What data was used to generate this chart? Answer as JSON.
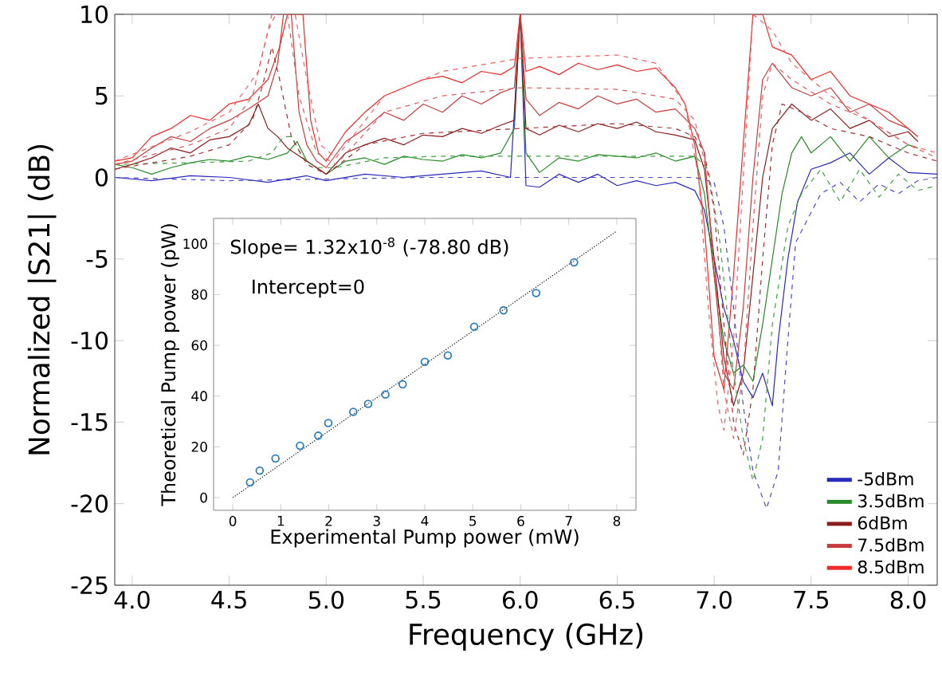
{
  "chart_data": [
    {
      "type": "line",
      "xlabel": "Frequency (GHz)",
      "ylabel": "Normalized |S21| (dB)",
      "xlim": [
        3.91,
        8.15
      ],
      "ylim": [
        -25,
        10
      ],
      "xticks": [
        {
          "value": 4,
          "label": "4.0"
        },
        {
          "value": 4.5,
          "label": "4.5"
        },
        {
          "value": 5,
          "label": "5.0"
        },
        {
          "value": 5.5,
          "label": "5.5"
        },
        {
          "value": 6,
          "label": "6.0"
        },
        {
          "value": 6.5,
          "label": "6.5"
        },
        {
          "value": 7,
          "label": "7.0"
        },
        {
          "value": 7.5,
          "label": "7.5"
        },
        {
          "value": 8,
          "label": "8.0"
        }
      ],
      "yticks": [
        -25,
        -20,
        -15,
        -10,
        -5,
        0,
        5,
        10
      ],
      "legend": "bottom right",
      "series": [
        {
          "name": "-5dBm",
          "color": "#2a2ab8",
          "line_style": "solid",
          "x": [
            3.91,
            4.1,
            4.3,
            4.5,
            4.7,
            4.9,
            5.0,
            5.2,
            5.4,
            5.6,
            5.8,
            5.95,
            6.0,
            6.03,
            6.1,
            6.2,
            6.3,
            6.4,
            6.5,
            6.6,
            6.7,
            6.8,
            6.9,
            6.95,
            7.0,
            7.05,
            7.1,
            7.15,
            7.2,
            7.25,
            7.3,
            7.33,
            7.38,
            7.43,
            7.5,
            7.6,
            7.7,
            7.8,
            7.9,
            8.0,
            8.15
          ],
          "values": [
            0,
            -0.2,
            0.1,
            0,
            -0.3,
            0.1,
            -0.2,
            0.2,
            0,
            0.2,
            0.4,
            0,
            10,
            -0.5,
            -0.6,
            0.2,
            -0.3,
            0.2,
            -0.5,
            -0.2,
            -0.5,
            -0.3,
            -0.8,
            -2,
            -5,
            -8,
            -10,
            -12.5,
            -13.5,
            -12,
            -14,
            -10,
            -5,
            -1.5,
            0.5,
            0.9,
            1.5,
            0.2,
            1.2,
            0.3,
            0.2
          ]
        },
        {
          "name": "3.5dBm",
          "color": "#2a8a2a",
          "line_style": "solid",
          "x": [
            3.91,
            4.0,
            4.1,
            4.2,
            4.3,
            4.4,
            4.5,
            4.6,
            4.7,
            4.8,
            4.85,
            4.9,
            5.0,
            5.1,
            5.2,
            5.3,
            5.4,
            5.5,
            5.6,
            5.7,
            5.8,
            5.9,
            5.97,
            6.0,
            6.03,
            6.1,
            6.2,
            6.3,
            6.4,
            6.5,
            6.6,
            6.7,
            6.8,
            6.9,
            6.95,
            7.0,
            7.05,
            7.1,
            7.15,
            7.2,
            7.25,
            7.3,
            7.35,
            7.4,
            7.45,
            7.5,
            7.6,
            7.7,
            7.8,
            7.9,
            8.0,
            8.05
          ],
          "values": [
            0.8,
            0.6,
            0.2,
            0.6,
            0.9,
            1.1,
            1.0,
            1.3,
            1.1,
            1.5,
            2.2,
            1.0,
            0.2,
            1.0,
            1.2,
            0.8,
            1.3,
            1.1,
            1.0,
            1.4,
            1.2,
            1.5,
            3.0,
            10,
            1.5,
            0.3,
            1.2,
            1.0,
            1.4,
            1.3,
            1.2,
            1.5,
            1.0,
            1.3,
            -1,
            -6,
            -10,
            -12,
            -11.5,
            -12.5,
            -9,
            -5,
            -1,
            1.5,
            2.5,
            1.5,
            2.5,
            1.0,
            2.5,
            1.2,
            2.0,
            1.8
          ]
        },
        {
          "name": "6dBm",
          "color": "#8b1c1c",
          "line_style": "solid",
          "x": [
            3.91,
            4.0,
            4.1,
            4.2,
            4.3,
            4.4,
            4.5,
            4.6,
            4.65,
            4.7,
            4.75,
            4.8,
            4.9,
            5.0,
            5.1,
            5.2,
            5.3,
            5.4,
            5.5,
            5.6,
            5.7,
            5.8,
            5.9,
            5.97,
            6.0,
            6.03,
            6.1,
            6.2,
            6.3,
            6.4,
            6.5,
            6.6,
            6.7,
            6.8,
            6.9,
            6.95,
            7.0,
            7.05,
            7.1,
            7.15,
            7.2,
            7.25,
            7.3,
            7.4,
            7.5,
            7.6,
            7.7,
            7.8,
            7.9,
            8.0,
            8.05
          ],
          "values": [
            0.5,
            0.8,
            1.2,
            1.8,
            1.5,
            2.3,
            2.5,
            3.2,
            4.5,
            3.0,
            2.5,
            1.8,
            1.0,
            0.2,
            1.5,
            2.0,
            2.4,
            2.0,
            2.6,
            2.5,
            3.0,
            2.7,
            3.2,
            3.5,
            10,
            3.0,
            2.6,
            3.2,
            2.8,
            3.3,
            3.0,
            3.4,
            2.8,
            2.6,
            2.3,
            0.5,
            -5,
            -11,
            -14,
            -12,
            -6,
            0,
            3.0,
            4.5,
            3.5,
            4.2,
            3.0,
            3.5,
            2.5,
            2.8,
            2.2
          ]
        },
        {
          "name": "7.5dBm",
          "color": "#c83c3c",
          "line_style": "solid",
          "x": [
            3.91,
            4.0,
            4.1,
            4.2,
            4.3,
            4.4,
            4.5,
            4.6,
            4.7,
            4.75,
            4.78,
            4.82,
            4.86,
            4.9,
            4.95,
            5.0,
            5.1,
            5.2,
            5.3,
            5.4,
            5.5,
            5.6,
            5.7,
            5.8,
            5.9,
            5.97,
            6.0,
            6.03,
            6.1,
            6.2,
            6.3,
            6.4,
            6.5,
            6.6,
            6.7,
            6.8,
            6.9,
            6.95,
            7.0,
            7.05,
            7.1,
            7.15,
            7.2,
            7.25,
            7.3,
            7.4,
            7.5,
            7.6,
            7.7,
            7.8,
            7.9,
            8.0,
            8.05
          ],
          "values": [
            0.8,
            1.0,
            1.8,
            2.5,
            2.2,
            3.0,
            3.5,
            4.2,
            5.0,
            7,
            10,
            10,
            4,
            2,
            1.0,
            0.6,
            2.2,
            3.0,
            4.0,
            3.5,
            4.5,
            4.0,
            5.0,
            4.5,
            5.2,
            5.5,
            10,
            4.8,
            3.8,
            4.6,
            4.2,
            5.0,
            4.5,
            4.8,
            4.0,
            4.2,
            3.0,
            1.5,
            -6,
            -12,
            -13,
            -8,
            0,
            6,
            7,
            5.5,
            5.0,
            5.5,
            4.0,
            4.5,
            3.5,
            3.0,
            2.5
          ]
        },
        {
          "name": "8.5dBm",
          "color": "#ee2a2a",
          "line_style": "solid",
          "x": [
            3.91,
            4.0,
            4.1,
            4.2,
            4.3,
            4.4,
            4.5,
            4.6,
            4.7,
            4.76,
            4.8,
            4.85,
            4.88,
            4.92,
            4.96,
            5.0,
            5.1,
            5.2,
            5.3,
            5.4,
            5.5,
            5.6,
            5.7,
            5.8,
            5.9,
            5.97,
            6.0,
            6.03,
            6.1,
            6.2,
            6.3,
            6.4,
            6.5,
            6.6,
            6.7,
            6.8,
            6.85,
            6.9,
            6.95,
            7.0,
            7.05,
            7.1,
            7.15,
            7.2,
            7.25,
            7.3,
            7.4,
            7.5,
            7.6,
            7.7,
            7.8,
            7.9,
            8.0,
            8.05
          ],
          "values": [
            1.0,
            1.2,
            2.5,
            3.0,
            3.8,
            3.5,
            4.5,
            4.8,
            6.0,
            8,
            10,
            10,
            10,
            3.5,
            1.5,
            1.0,
            2.8,
            4.0,
            5.0,
            5.5,
            6.0,
            6.2,
            5.8,
            6.5,
            6.3,
            6.8,
            10,
            6.5,
            6.8,
            6.3,
            7.0,
            6.6,
            6.9,
            6.5,
            6.7,
            5.5,
            4.5,
            2,
            -3,
            -11,
            -13,
            -6,
            2,
            10,
            10,
            8,
            7.5,
            6.0,
            6.5,
            5.0,
            4.5,
            4.0,
            3.0,
            2.5
          ]
        },
        {
          "color": "#4a4ad0",
          "line_style": "dashed",
          "x": [
            3.91,
            4.5,
            5.0,
            5.5,
            6.0,
            6.5,
            6.9,
            7.0,
            7.05,
            7.1,
            7.15,
            7.2,
            7.27,
            7.33,
            7.38,
            7.42,
            7.48,
            7.55,
            7.65,
            7.75,
            7.85,
            7.95,
            8.05,
            8.15
          ],
          "values": [
            0,
            -0.2,
            -0.1,
            0,
            0,
            0,
            0,
            -0.3,
            -3,
            -8,
            -14,
            -18,
            -20.3,
            -18,
            -10,
            -4,
            -2.6,
            -1,
            -0.3,
            -1.5,
            -0.4,
            -1,
            -0.2,
            0
          ]
        },
        {
          "color": "#40a040",
          "line_style": "dashed",
          "x": [
            3.91,
            4.3,
            4.6,
            4.72,
            4.78,
            4.82,
            4.88,
            4.95,
            5.05,
            5.3,
            5.6,
            6.0,
            6.5,
            6.9,
            6.97,
            7.03,
            7.1,
            7.15,
            7.2,
            7.25,
            7.3,
            7.38,
            7.45,
            7.55,
            7.65,
            7.75,
            7.85,
            7.95,
            8.05,
            8.15
          ],
          "values": [
            0.8,
            0.9,
            1.0,
            1.5,
            2.5,
            2.5,
            1.2,
            0.6,
            0.6,
            1.2,
            1.3,
            1.3,
            1.3,
            1.3,
            0.5,
            -4,
            -12,
            -16,
            -18.6,
            -16,
            -9,
            -3,
            -1,
            0.5,
            -1.5,
            0.5,
            -1.2,
            0.2,
            -0.8,
            -0.5
          ]
        },
        {
          "color": "#a03030",
          "line_style": "dashed",
          "x": [
            3.91,
            4.3,
            4.5,
            4.62,
            4.68,
            4.72,
            4.76,
            4.82,
            4.9,
            5.0,
            5.2,
            5.5,
            6.0,
            6.5,
            6.8,
            6.9,
            6.95,
            7.0,
            7.05,
            7.1,
            7.15,
            7.2,
            7.25,
            7.3,
            7.35,
            7.45,
            7.6,
            7.8,
            8.0,
            8.15
          ],
          "values": [
            0.5,
            1.3,
            2.0,
            3.5,
            6,
            8,
            6,
            2.5,
            0.8,
            0.2,
            2.0,
            2.7,
            3.0,
            3.3,
            3.0,
            2.5,
            1.5,
            -2,
            -9,
            -15,
            -17,
            -13,
            -5,
            2,
            4.5,
            4,
            3,
            2.5,
            1.5,
            1.0
          ]
        },
        {
          "color": "#d86060",
          "line_style": "dashed",
          "x": [
            3.91,
            4.3,
            4.5,
            4.62,
            4.7,
            4.74,
            4.8,
            4.86,
            4.95,
            5.05,
            5.3,
            5.6,
            6.0,
            6.5,
            6.8,
            6.9,
            6.95,
            7.0,
            7.05,
            7.1,
            7.15,
            7.2,
            7.25,
            7.3,
            7.4,
            7.6,
            7.8,
            8.0,
            8.15
          ],
          "values": [
            0.8,
            2.0,
            3.0,
            5,
            9,
            10,
            10,
            5,
            1.5,
            0.8,
            4.0,
            5.0,
            5.5,
            5.4,
            4.8,
            3.5,
            1.0,
            -5,
            -13,
            -16,
            -12,
            -3,
            5,
            7,
            6,
            4.5,
            3.5,
            2.0,
            1.2
          ]
        },
        {
          "color": "#f06060",
          "line_style": "dashed",
          "x": [
            3.91,
            4.3,
            4.5,
            4.65,
            4.72,
            4.76,
            4.84,
            4.9,
            4.97,
            5.05,
            5.3,
            5.6,
            6.0,
            6.5,
            6.7,
            6.85,
            6.92,
            6.97,
            7.02,
            7.05,
            7.1,
            7.15,
            7.2,
            7.3,
            7.4,
            7.6,
            7.8,
            8.0,
            8.15
          ],
          "values": [
            1.0,
            2.8,
            4.0,
            6.5,
            10,
            10,
            10,
            6,
            2,
            1.2,
            5.0,
            6.5,
            7.3,
            7.5,
            7.0,
            4.5,
            0,
            -8,
            -14,
            -15.5,
            -10,
            0,
            10,
            9,
            7,
            5,
            3.5,
            2.0,
            1.5
          ]
        }
      ]
    },
    {
      "type": "scatter",
      "xlabel": "Experimental Pump power (mW)",
      "ylabel": "Theoretical Pump power (pW)",
      "xlim": [
        -0.4,
        8.4
      ],
      "ylim": [
        -5,
        110
      ],
      "xticks": [
        0,
        1,
        2,
        3,
        4,
        5,
        6,
        7,
        8
      ],
      "yticks": [
        0,
        20,
        40,
        60,
        80,
        100
      ],
      "annotations": [
        "Slope= 1.32x10$^{-8}$ (-78.80 dB)",
        "Intercept=0"
      ],
      "series": [
        {
          "type": "scatter",
          "marker": "circle",
          "color": "#2a7fc4",
          "x": [
            0.36,
            0.56,
            0.89,
            1.4,
            1.78,
            1.99,
            2.51,
            2.82,
            3.18,
            3.54,
            4.0,
            4.48,
            5.03,
            5.64,
            6.32,
            7.11
          ],
          "values": [
            6.0,
            10.6,
            15.4,
            20.4,
            24.4,
            29.4,
            33.8,
            36.9,
            40.6,
            44.6,
            53.5,
            56.0,
            67.3,
            73.8,
            80.6,
            92.7
          ]
        },
        {
          "type": "line",
          "line_style": "dotted",
          "color": "#000000",
          "x": [
            0,
            8
          ],
          "values": [
            0,
            105
          ]
        }
      ]
    }
  ]
}
